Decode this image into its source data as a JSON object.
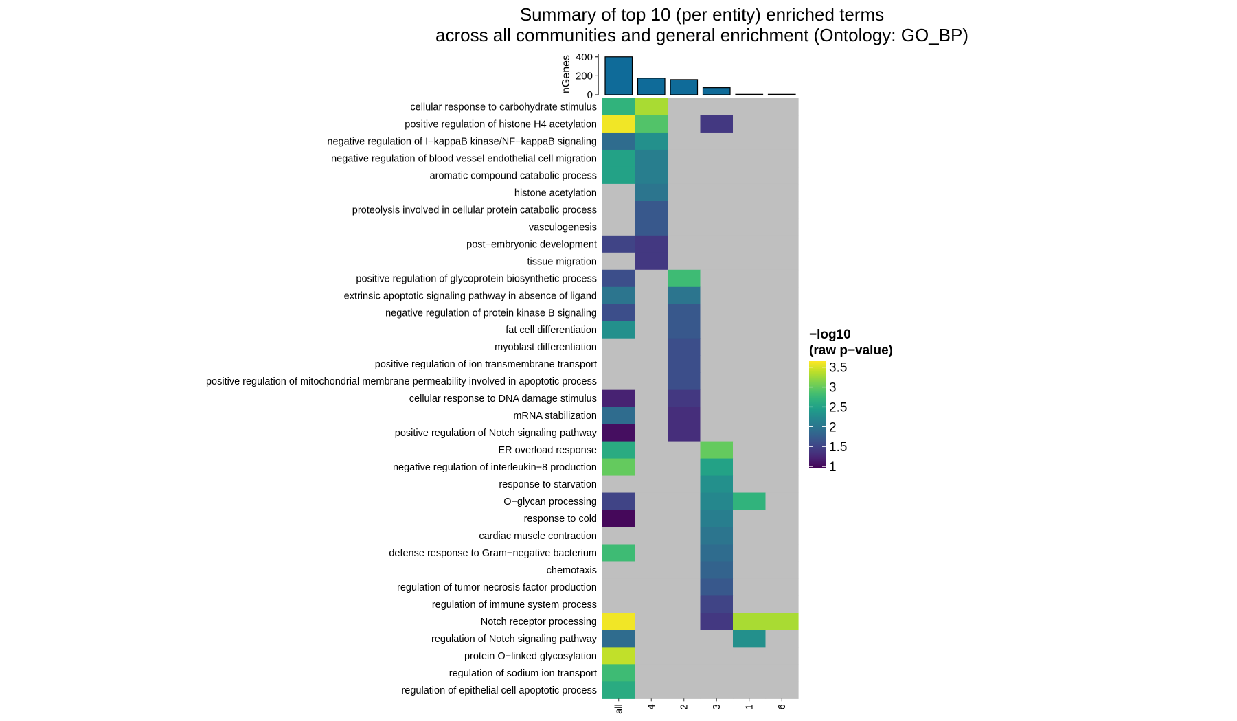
{
  "chart_data": {
    "type": "heatmap",
    "title_lines": [
      "Summary of top 10 (per entity) enriched terms",
      "across all communities and general enrichment (Ontology: GO_BP)"
    ],
    "columns": [
      "all",
      "4",
      "2",
      "3",
      "1",
      "6"
    ],
    "rows": [
      "cellular response to carbohydrate stimulus",
      "positive regulation of histone H4 acetylation",
      "negative regulation of I−kappaB kinase/NF−kappaB signaling",
      "negative regulation of blood vessel endothelial cell migration",
      "aromatic compound catabolic process",
      "histone acetylation",
      "proteolysis involved in cellular protein catabolic process",
      "vasculogenesis",
      "post−embryonic development",
      "tissue migration",
      "positive regulation of glycoprotein biosynthetic process",
      "extrinsic apoptotic signaling pathway in absence of ligand",
      "negative regulation of protein kinase B signaling",
      "fat cell differentiation",
      "myoblast differentiation",
      "positive regulation of ion transmembrane transport",
      "positive regulation of mitochondrial membrane permeability involved in apoptotic process",
      "cellular response to DNA damage stimulus",
      "mRNA stabilization",
      "positive regulation of Notch signaling pathway",
      "ER overload response",
      "negative regulation of interleukin−8 production",
      "response to starvation",
      "O−glycan processing",
      "response to cold",
      "cardiac muscle contraction",
      "defense response to Gram−negative bacterium",
      "chemotaxis",
      "regulation of tumor necrosis factor production",
      "regulation of immune system process",
      "Notch receptor processing",
      "regulation of Notch signaling pathway",
      "protein O−linked glycosylation",
      "regulation of sodium ion transport",
      "regulation of epithelial cell apoptotic process"
    ],
    "values": [
      [
        2.7,
        3.3,
        null,
        null,
        null,
        null
      ],
      [
        3.6,
        2.9,
        null,
        1.4,
        null,
        null
      ],
      [
        1.9,
        2.3,
        null,
        null,
        null,
        null
      ],
      [
        2.5,
        2.1,
        null,
        null,
        null,
        null
      ],
      [
        2.5,
        2.1,
        null,
        null,
        null,
        null
      ],
      [
        null,
        2.0,
        null,
        null,
        null,
        null
      ],
      [
        null,
        1.7,
        null,
        null,
        null,
        null
      ],
      [
        null,
        1.7,
        null,
        null,
        null,
        null
      ],
      [
        1.5,
        1.4,
        null,
        null,
        null,
        null
      ],
      [
        null,
        1.4,
        null,
        null,
        null,
        null
      ],
      [
        1.6,
        null,
        2.8,
        null,
        null,
        null
      ],
      [
        2.0,
        null,
        2.0,
        null,
        null,
        null
      ],
      [
        1.6,
        null,
        1.7,
        null,
        null,
        null
      ],
      [
        2.3,
        null,
        1.7,
        null,
        null,
        null
      ],
      [
        null,
        null,
        1.6,
        null,
        null,
        null
      ],
      [
        null,
        null,
        1.6,
        null,
        null,
        null
      ],
      [
        null,
        null,
        1.6,
        null,
        null,
        null
      ],
      [
        1.2,
        null,
        1.4,
        null,
        null,
        null
      ],
      [
        1.9,
        null,
        1.3,
        null,
        null,
        null
      ],
      [
        1.05,
        null,
        1.3,
        null,
        null,
        null
      ],
      [
        2.6,
        null,
        null,
        3.0,
        null,
        null
      ],
      [
        3.0,
        null,
        null,
        2.5,
        null,
        null
      ],
      [
        null,
        null,
        null,
        2.3,
        null,
        null
      ],
      [
        1.5,
        null,
        null,
        2.2,
        2.7,
        null
      ],
      [
        1.0,
        null,
        null,
        2.1,
        null,
        null
      ],
      [
        null,
        null,
        null,
        2.0,
        null,
        null
      ],
      [
        2.8,
        null,
        null,
        1.9,
        null,
        null
      ],
      [
        null,
        null,
        null,
        1.8,
        null,
        null
      ],
      [
        null,
        null,
        null,
        1.7,
        null,
        null
      ],
      [
        null,
        null,
        null,
        1.5,
        null,
        null
      ],
      [
        3.6,
        null,
        null,
        1.4,
        3.3,
        3.3
      ],
      [
        1.9,
        null,
        null,
        null,
        2.3,
        null
      ],
      [
        3.4,
        null,
        null,
        null,
        null,
        null
      ],
      [
        2.8,
        null,
        null,
        null,
        null,
        null
      ],
      [
        2.6,
        null,
        null,
        null,
        null,
        null
      ]
    ],
    "bars": {
      "ylabel": "nGenes",
      "ylim": [
        0,
        420
      ],
      "yticks": [
        0,
        200,
        400
      ],
      "values": [
        400,
        175,
        160,
        75,
        5,
        5
      ],
      "fill": "#0f6b99"
    },
    "legend": {
      "title_lines": [
        "−log10",
        "(raw p−value)"
      ],
      "ticks": [
        3.5,
        3,
        2.5,
        2,
        1.5,
        1
      ],
      "tick_labels": [
        "3.5",
        "3",
        "2.5",
        "2",
        "1.5",
        "1"
      ],
      "range": [
        0.95,
        3.65
      ],
      "placement": "right"
    },
    "colors": {
      "na_fill": "#bfbfbf",
      "viridis": [
        "#440154",
        "#482878",
        "#3e4989",
        "#31688e",
        "#26828e",
        "#1f9e89",
        "#35b779",
        "#6ece58",
        "#b5de2b",
        "#fde725"
      ]
    }
  }
}
